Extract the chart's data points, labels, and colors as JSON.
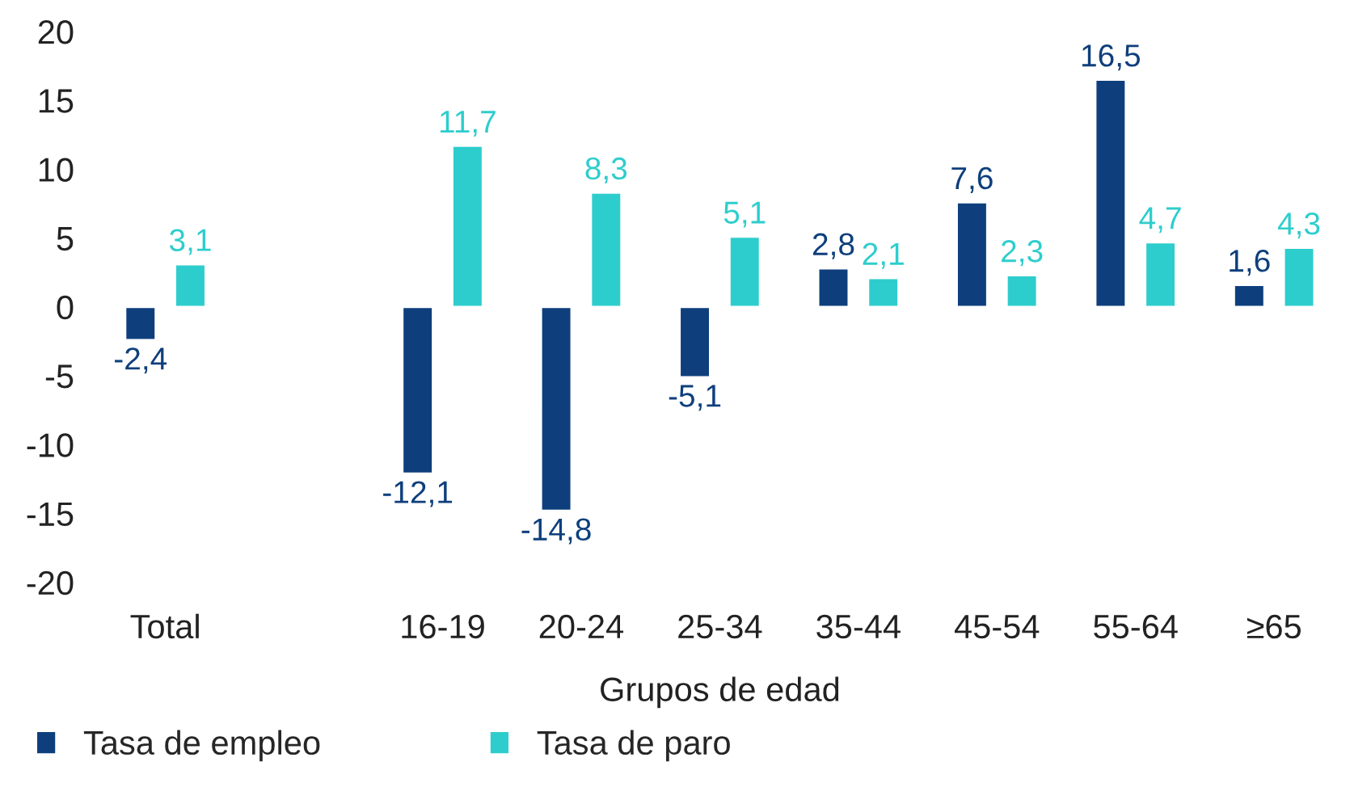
{
  "chart_data": {
    "type": "bar",
    "xlabel": "Grupos de edad",
    "categories": [
      "Total",
      null,
      "16-19",
      "20-24",
      "25-34",
      "35-44",
      "45-54",
      "55-64",
      "≥65"
    ],
    "series": [
      {
        "name": "Tasa de empleo",
        "color": "#0e3f7c",
        "values": [
          -2.4,
          null,
          -12.1,
          -14.8,
          -5.1,
          2.8,
          7.6,
          16.5,
          1.6
        ],
        "value_labels": [
          "-2,4",
          null,
          "-12,1",
          "-14,8",
          "-5,1",
          "2,8",
          "7,6",
          "16,5",
          "1,6"
        ]
      },
      {
        "name": "Tasa de paro",
        "color": "#2ecdcd",
        "values": [
          3.1,
          null,
          11.7,
          8.3,
          5.1,
          2.1,
          2.3,
          4.7,
          4.3
        ],
        "value_labels": [
          "3,1",
          null,
          "11,7",
          "8,3",
          "5,1",
          "2,1",
          "2,3",
          "4,7",
          "4,3"
        ]
      }
    ],
    "ylim": [
      -20,
      20
    ],
    "yticks": [
      -20,
      -15,
      -10,
      -5,
      0,
      5,
      10,
      15,
      20
    ],
    "grid": false,
    "legend": "bottom left"
  }
}
